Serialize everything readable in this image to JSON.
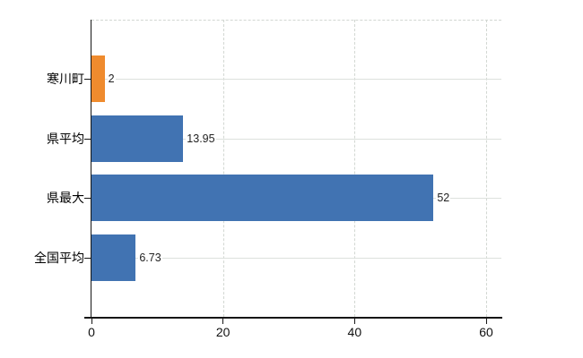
{
  "chart_data": {
    "type": "bar",
    "orientation": "horizontal",
    "title": "",
    "xlabel": "",
    "ylabel": "",
    "categories": [
      "寒川町",
      "県平均",
      "県最大",
      "全国平均"
    ],
    "values": [
      2,
      13.95,
      52,
      6.73
    ],
    "value_labels": [
      "2",
      "13.95",
      "52",
      "6.73"
    ],
    "series_colors": [
      "#ef8b2e",
      "#4173b2",
      "#4173b2",
      "#4173b2"
    ],
    "x_axis": {
      "min": 0,
      "max": 62.3,
      "ticks": [
        0,
        20,
        40,
        60
      ],
      "tick_labels": [
        "0",
        "20",
        "40",
        "60"
      ]
    },
    "grid": {
      "vertical_gridlines": "dashed",
      "horizontal_gridlines": "solid",
      "gridline_color": "#d6dad6"
    },
    "legend": "none"
  },
  "colors": {
    "background": "#ffffff",
    "axis": "#161616",
    "bar_orange": "#ef8b2e",
    "bar_blue": "#4173b2",
    "gridline": "#d6dad6",
    "label_text": "#000000",
    "value_text": "#222222"
  }
}
